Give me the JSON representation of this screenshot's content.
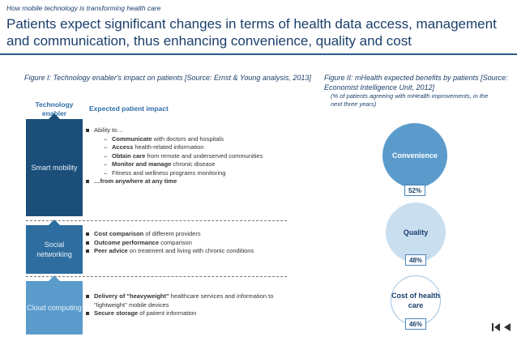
{
  "header": {
    "kicker": "How mobile technology is transforming health care",
    "title": "Patients expect significant changes in terms of health data access, management and communication, thus enhancing convenience, quality and cost"
  },
  "figure1": {
    "caption": "Figure I: Technology enabler's impact on patients [Source: Ernst & Young analysis, 2013]",
    "col_enabler": "Technology enabler",
    "col_impact": "Expected patient impact",
    "enablers": {
      "smart": "Smart mobility",
      "social": "Social networking",
      "cloud": "Cloud computing"
    },
    "smart": {
      "ability": "Ability to…",
      "communicate_b": "Communicate",
      "communicate_t": " with doctors and hospitals",
      "access_b": "Access",
      "access_t": " health-related information",
      "obtain_b": "Obtain care",
      "obtain_t": " from remote and underserved communities",
      "monitor_b": "Monitor and manage",
      "monitor_t": " chronic disease",
      "fitness": "Fitness and wellness programs monitoring",
      "anywhere": "…from anywhere at any time"
    },
    "social": {
      "cost_b": "Cost comparison",
      "cost_t": " of different providers",
      "outcome_b": "Outcome performance",
      "outcome_t": " comparison",
      "peer_b": "Peer advice",
      "peer_t": " on treatment and living with chronic conditions"
    },
    "cloud": {
      "delivery_b": "Delivery of \"heavyweight\"",
      "delivery_t": " healthcare services and information to \"lightweight\" mobile devices",
      "storage_b": "Secure storage",
      "storage_t": " of patient information"
    }
  },
  "figure2": {
    "caption": "Figure II: mHealth expected benefits by patients [Source: Economist Intelligence Unit, 2012]",
    "note": "(% of patients agreeing with mHealth improvements, in the next three years)",
    "benefits": [
      {
        "label": "Convenience",
        "value": "52%"
      },
      {
        "label": "Quality",
        "value": "48%"
      },
      {
        "label": "Cost of health care",
        "value": "46%"
      }
    ]
  },
  "colors": {
    "title": "#1b3f6b",
    "smart": "#1b4f7a",
    "social": "#2d6d9f",
    "cloud": "#5b9bcc",
    "quality_circle": "#c9dff0"
  },
  "nav": {
    "first_icon": "skip-back-icon",
    "prev_icon": "play-back-icon"
  }
}
